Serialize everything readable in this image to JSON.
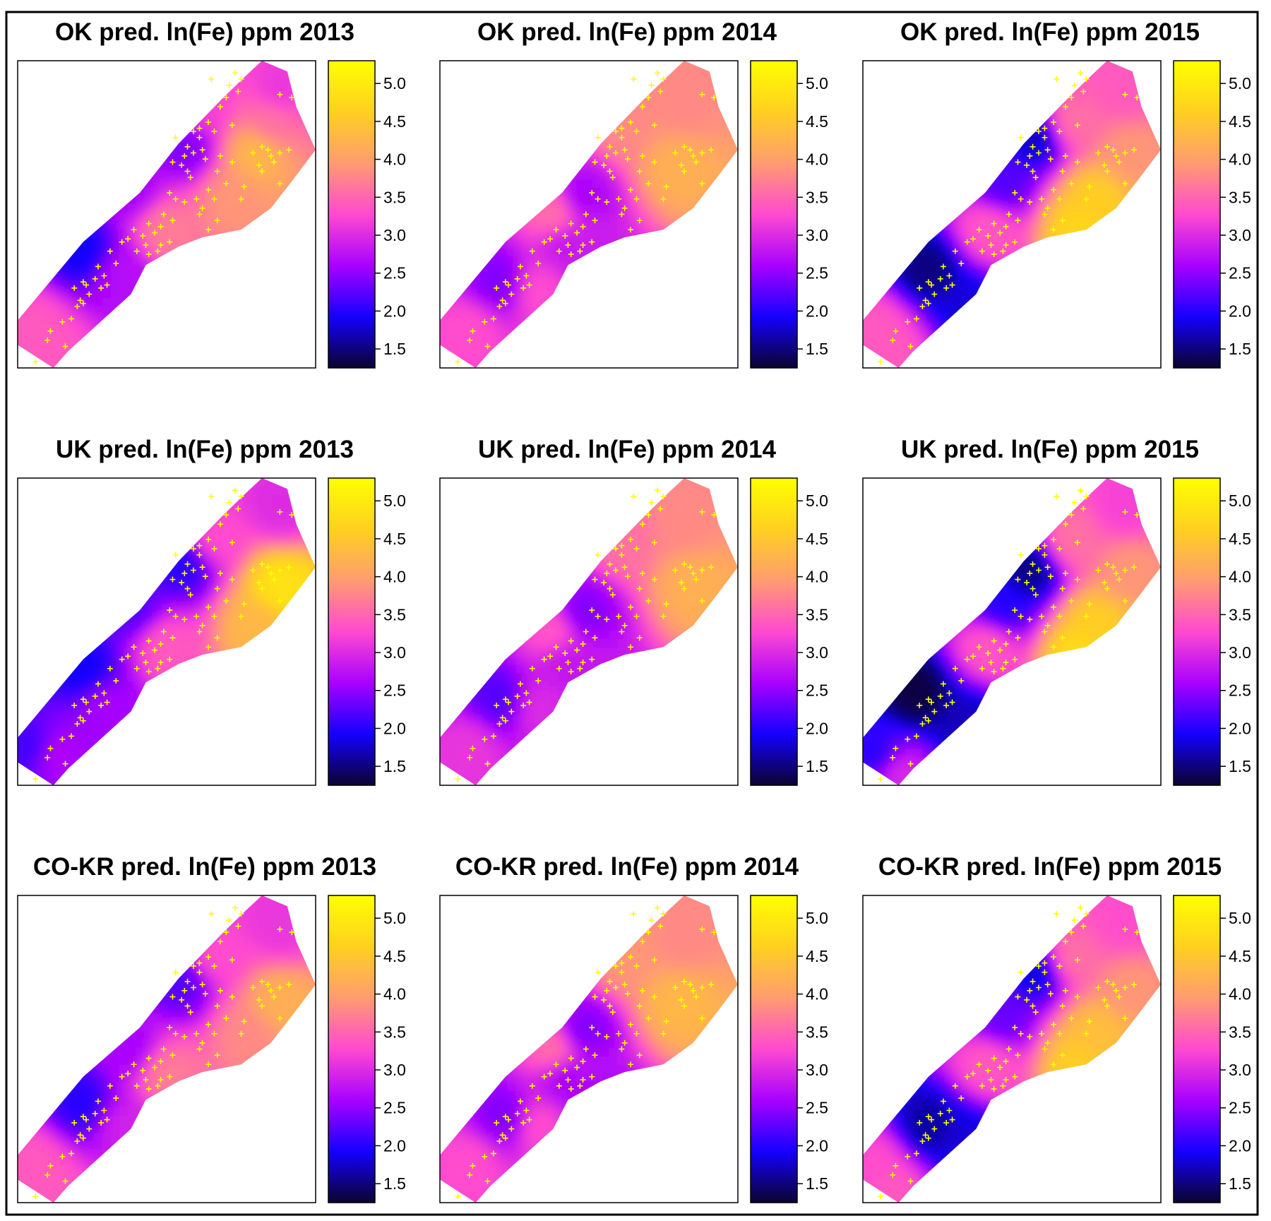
{
  "chart_data": {
    "type": "heatmap",
    "legend_placement": "right of each panel",
    "colorbar": {
      "ticks": [
        1.5,
        2.0,
        2.5,
        3.0,
        3.5,
        4.0,
        4.5,
        5.0
      ],
      "tick_labels": [
        "1.5",
        "2.0",
        "2.5",
        "3.0",
        "3.5",
        "4.0",
        "4.5",
        "5.0"
      ],
      "range": [
        1.25,
        5.3
      ],
      "colors": [
        "#0b0430",
        "#1500ff",
        "#a800ff",
        "#ff4ad0",
        "#ff9c70",
        "#ffd020",
        "#ffff00"
      ]
    },
    "sample_marker_color": "#ffff00",
    "panels": [
      {
        "title": "OK pred. ln(Fe) ppm 2013",
        "method": "OK",
        "year": "2013",
        "hotspots": [
          [
            0.22,
            0.62,
            1.9
          ],
          [
            0.38,
            0.42,
            2.6
          ],
          [
            0.56,
            0.28,
            2.4
          ],
          [
            0.8,
            0.3,
            4.3
          ],
          [
            0.72,
            0.45,
            3.9
          ],
          [
            0.5,
            0.55,
            3.7
          ],
          [
            0.05,
            0.88,
            3.4
          ],
          [
            0.1,
            0.96,
            3.4
          ],
          [
            0.35,
            0.7,
            2.7
          ],
          [
            0.88,
            0.1,
            3.1
          ],
          [
            0.85,
            0.2,
            3.6
          ],
          [
            0.62,
            0.15,
            3.2
          ]
        ]
      },
      {
        "title": "OK pred. ln(Fe) ppm 2014",
        "method": "OK",
        "year": "2014",
        "hotspots": [
          [
            0.2,
            0.72,
            2.4
          ],
          [
            0.48,
            0.44,
            2.6
          ],
          [
            0.42,
            0.6,
            2.8
          ],
          [
            0.55,
            0.7,
            2.8
          ],
          [
            0.8,
            0.35,
            4.2
          ],
          [
            0.82,
            0.15,
            3.8
          ],
          [
            0.62,
            0.2,
            3.8
          ],
          [
            0.38,
            0.5,
            3.6
          ],
          [
            0.1,
            0.88,
            3.3
          ],
          [
            0.33,
            0.75,
            3.3
          ]
        ]
      },
      {
        "title": "OK pred. ln(Fe) ppm 2015",
        "method": "OK",
        "year": "2015",
        "hotspots": [
          [
            0.22,
            0.68,
            1.5
          ],
          [
            0.35,
            0.8,
            1.8
          ],
          [
            0.58,
            0.25,
            1.7
          ],
          [
            0.47,
            0.4,
            2.2
          ],
          [
            0.7,
            0.2,
            3.6
          ],
          [
            0.78,
            0.45,
            4.6
          ],
          [
            0.72,
            0.55,
            4.7
          ],
          [
            0.9,
            0.3,
            3.9
          ],
          [
            0.05,
            0.88,
            3.4
          ],
          [
            0.1,
            0.96,
            3.4
          ],
          [
            0.42,
            0.55,
            3.4
          ],
          [
            0.88,
            0.1,
            3.4
          ]
        ]
      },
      {
        "title": "UK pred. ln(Fe) ppm 2013",
        "method": "UK",
        "year": "2013",
        "hotspots": [
          [
            0.22,
            0.62,
            1.9
          ],
          [
            0.38,
            0.42,
            2.2
          ],
          [
            0.56,
            0.28,
            2.0
          ],
          [
            0.88,
            0.35,
            4.9
          ],
          [
            0.8,
            0.48,
            4.3
          ],
          [
            0.5,
            0.55,
            3.4
          ],
          [
            0.05,
            0.88,
            2.1
          ],
          [
            0.12,
            0.9,
            2.7
          ],
          [
            0.3,
            0.75,
            2.6
          ],
          [
            0.88,
            0.1,
            3.0
          ],
          [
            0.66,
            0.2,
            3.3
          ]
        ]
      },
      {
        "title": "UK pred. ln(Fe) ppm 2014",
        "method": "UK",
        "year": "2014",
        "hotspots": [
          [
            0.2,
            0.72,
            2.2
          ],
          [
            0.48,
            0.44,
            2.4
          ],
          [
            0.42,
            0.6,
            2.8
          ],
          [
            0.55,
            0.7,
            2.8
          ],
          [
            0.85,
            0.35,
            4.2
          ],
          [
            0.82,
            0.15,
            3.8
          ],
          [
            0.62,
            0.2,
            3.6
          ],
          [
            0.38,
            0.5,
            3.4
          ],
          [
            0.1,
            0.88,
            3.1
          ],
          [
            0.33,
            0.75,
            3.0
          ]
        ]
      },
      {
        "title": "UK pred. ln(Fe) ppm 2015",
        "method": "UK",
        "year": "2015",
        "hotspots": [
          [
            0.18,
            0.7,
            1.3
          ],
          [
            0.35,
            0.8,
            1.7
          ],
          [
            0.56,
            0.3,
            1.5
          ],
          [
            0.47,
            0.42,
            2.0
          ],
          [
            0.7,
            0.2,
            3.6
          ],
          [
            0.78,
            0.48,
            4.6
          ],
          [
            0.72,
            0.58,
            4.8
          ],
          [
            0.9,
            0.3,
            3.9
          ],
          [
            0.05,
            0.9,
            2.0
          ],
          [
            0.12,
            0.96,
            3.0
          ],
          [
            0.42,
            0.55,
            3.4
          ],
          [
            0.88,
            0.1,
            3.2
          ]
        ]
      },
      {
        "title": "CO-KR pred. ln(Fe) ppm 2013",
        "method": "CO-KR",
        "year": "2013",
        "hotspots": [
          [
            0.22,
            0.68,
            2.0
          ],
          [
            0.38,
            0.5,
            2.6
          ],
          [
            0.55,
            0.28,
            2.2
          ],
          [
            0.88,
            0.35,
            4.2
          ],
          [
            0.78,
            0.45,
            3.8
          ],
          [
            0.5,
            0.58,
            3.7
          ],
          [
            0.05,
            0.88,
            3.4
          ],
          [
            0.1,
            0.96,
            3.4
          ],
          [
            0.35,
            0.75,
            2.9
          ],
          [
            0.88,
            0.1,
            3.1
          ],
          [
            0.66,
            0.2,
            3.3
          ]
        ]
      },
      {
        "title": "CO-KR pred. ln(Fe) ppm 2014",
        "method": "CO-KR",
        "year": "2014",
        "hotspots": [
          [
            0.22,
            0.72,
            2.4
          ],
          [
            0.48,
            0.44,
            2.4
          ],
          [
            0.42,
            0.6,
            2.6
          ],
          [
            0.55,
            0.7,
            2.6
          ],
          [
            0.8,
            0.35,
            4.3
          ],
          [
            0.82,
            0.15,
            3.8
          ],
          [
            0.62,
            0.2,
            3.9
          ],
          [
            0.38,
            0.5,
            3.6
          ],
          [
            0.1,
            0.88,
            3.3
          ],
          [
            0.33,
            0.75,
            3.3
          ]
        ]
      },
      {
        "title": "CO-KR pred. ln(Fe) ppm 2015",
        "method": "CO-KR",
        "year": "2015",
        "hotspots": [
          [
            0.22,
            0.75,
            1.6
          ],
          [
            0.35,
            0.8,
            1.8
          ],
          [
            0.58,
            0.25,
            1.8
          ],
          [
            0.47,
            0.4,
            2.3
          ],
          [
            0.7,
            0.2,
            3.6
          ],
          [
            0.78,
            0.45,
            4.4
          ],
          [
            0.72,
            0.55,
            4.6
          ],
          [
            0.9,
            0.3,
            3.9
          ],
          [
            0.05,
            0.88,
            3.3
          ],
          [
            0.1,
            0.96,
            3.4
          ],
          [
            0.42,
            0.55,
            3.4
          ],
          [
            0.88,
            0.1,
            3.3
          ]
        ]
      }
    ],
    "samples": [
      [
        0.73,
        0.04
      ],
      [
        0.75,
        0.06
      ],
      [
        0.71,
        0.08
      ],
      [
        0.74,
        0.1
      ],
      [
        0.7,
        0.12
      ],
      [
        0.68,
        0.15
      ],
      [
        0.92,
        0.12
      ],
      [
        0.88,
        0.11
      ],
      [
        0.64,
        0.2
      ],
      [
        0.72,
        0.21
      ],
      [
        0.66,
        0.23
      ],
      [
        0.59,
        0.23
      ],
      [
        0.61,
        0.25
      ],
      [
        0.57,
        0.28
      ],
      [
        0.59,
        0.3
      ],
      [
        0.62,
        0.29
      ],
      [
        0.56,
        0.31
      ],
      [
        0.53,
        0.25
      ],
      [
        0.61,
        0.22
      ],
      [
        0.52,
        0.33
      ],
      [
        0.55,
        0.34
      ],
      [
        0.57,
        0.36
      ],
      [
        0.58,
        0.38
      ],
      [
        0.68,
        0.31
      ],
      [
        0.72,
        0.33
      ],
      [
        0.79,
        0.3
      ],
      [
        0.84,
        0.29
      ],
      [
        0.88,
        0.3
      ],
      [
        0.91,
        0.29
      ],
      [
        0.85,
        0.31
      ],
      [
        0.81,
        0.34
      ],
      [
        0.86,
        0.33
      ],
      [
        0.82,
        0.36
      ],
      [
        0.88,
        0.4
      ],
      [
        0.76,
        0.41
      ],
      [
        0.7,
        0.4
      ],
      [
        0.64,
        0.42
      ],
      [
        0.6,
        0.45
      ],
      [
        0.56,
        0.46
      ],
      [
        0.66,
        0.45
      ],
      [
        0.75,
        0.45
      ],
      [
        0.62,
        0.48
      ],
      [
        0.67,
        0.52
      ],
      [
        0.64,
        0.55
      ],
      [
        0.61,
        0.5
      ],
      [
        0.52,
        0.52
      ],
      [
        0.49,
        0.5
      ],
      [
        0.53,
        0.45
      ],
      [
        0.51,
        0.43
      ],
      [
        0.48,
        0.54
      ],
      [
        0.46,
        0.56
      ],
      [
        0.43,
        0.6
      ],
      [
        0.4,
        0.62
      ],
      [
        0.47,
        0.62
      ],
      [
        0.44,
        0.53
      ],
      [
        0.42,
        0.57
      ],
      [
        0.39,
        0.55
      ],
      [
        0.37,
        0.58
      ],
      [
        0.35,
        0.59
      ],
      [
        0.48,
        0.6
      ],
      [
        0.44,
        0.63
      ],
      [
        0.51,
        0.59
      ],
      [
        0.31,
        0.62
      ],
      [
        0.27,
        0.67
      ],
      [
        0.29,
        0.7
      ],
      [
        0.33,
        0.66
      ],
      [
        0.26,
        0.71
      ],
      [
        0.22,
        0.72
      ],
      [
        0.21,
        0.78
      ],
      [
        0.22,
        0.79
      ],
      [
        0.24,
        0.76
      ],
      [
        0.18,
        0.84
      ],
      [
        0.11,
        0.88
      ],
      [
        0.1,
        0.91
      ],
      [
        0.15,
        0.85
      ],
      [
        0.28,
        0.74
      ],
      [
        0.3,
        0.73
      ],
      [
        0.19,
        0.74
      ],
      [
        0.06,
        0.98
      ],
      [
        0.16,
        0.93
      ],
      [
        0.2,
        0.8
      ],
      [
        0.23,
        0.73
      ],
      [
        0.65,
        0.06
      ],
      [
        0.82,
        0.28
      ],
      [
        0.67,
        0.36
      ],
      [
        0.63,
        0.32
      ]
    ]
  }
}
